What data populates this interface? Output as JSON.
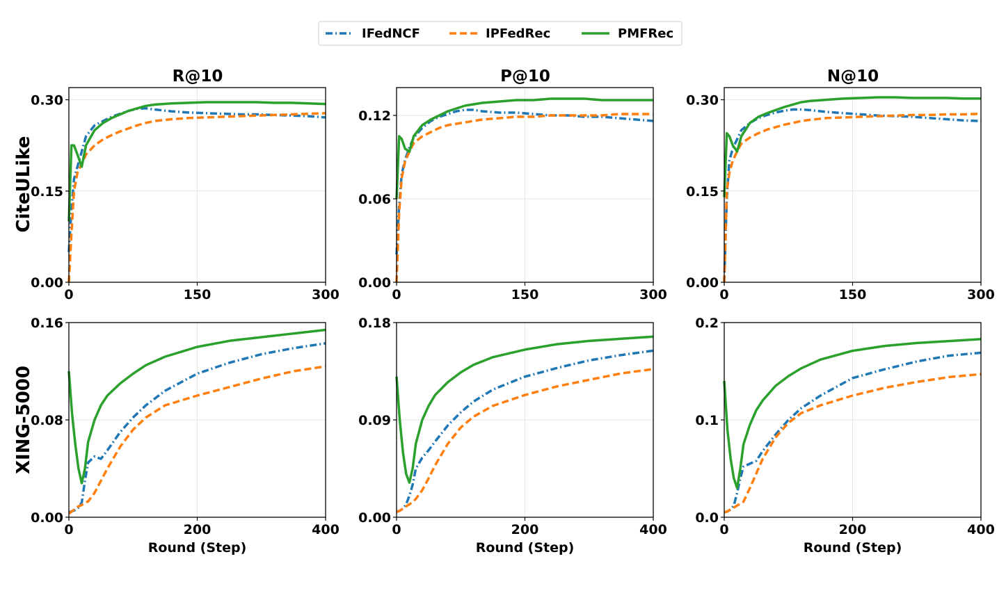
{
  "legend": {
    "placement": "top-center",
    "items": [
      {
        "key": "ifedncf",
        "label": "IFedNCF",
        "color": "#1f77b4",
        "style": "dashdot"
      },
      {
        "key": "ipfedrec",
        "label": "IPFedRec",
        "color": "#ff7f0e",
        "style": "dashed"
      },
      {
        "key": "pmfrec",
        "label": "PMFRec",
        "color": "#2ca02c",
        "style": "solid"
      }
    ]
  },
  "columns": [
    "R@10",
    "P@10",
    "N@10"
  ],
  "rows": [
    "CiteULike",
    "XING-5000"
  ],
  "x_axis_label": "Round (Step)",
  "chart_data": [
    {
      "type": "line",
      "row": "CiteULike",
      "title": "R@10",
      "xlabel": "",
      "grid": true,
      "xlim": [
        0,
        300
      ],
      "ylim": [
        0,
        0.32
      ],
      "xticks": [
        "0",
        "150",
        "300"
      ],
      "yticks": [
        "0.00",
        "0.15",
        "0.30"
      ],
      "x": [
        0,
        3,
        6,
        10,
        15,
        20,
        30,
        40,
        50,
        60,
        70,
        80,
        90,
        100,
        120,
        140,
        160,
        180,
        200,
        220,
        240,
        260,
        280,
        300
      ],
      "series": [
        {
          "key": "ifedncf",
          "values": [
            0.05,
            0.12,
            0.17,
            0.19,
            0.215,
            0.24,
            0.258,
            0.265,
            0.272,
            0.277,
            0.282,
            0.285,
            0.286,
            0.284,
            0.281,
            0.279,
            0.278,
            0.277,
            0.276,
            0.276,
            0.275,
            0.274,
            0.273,
            0.271
          ]
        },
        {
          "key": "ipfedrec",
          "values": [
            0.0,
            0.08,
            0.15,
            0.18,
            0.195,
            0.21,
            0.225,
            0.235,
            0.242,
            0.248,
            0.253,
            0.258,
            0.262,
            0.265,
            0.268,
            0.27,
            0.271,
            0.272,
            0.273,
            0.274,
            0.275,
            0.276,
            0.277,
            0.278
          ]
        },
        {
          "key": "pmfrec",
          "values": [
            0.1,
            0.225,
            0.225,
            0.21,
            0.19,
            0.225,
            0.25,
            0.262,
            0.27,
            0.276,
            0.282,
            0.286,
            0.29,
            0.292,
            0.294,
            0.295,
            0.296,
            0.296,
            0.296,
            0.296,
            0.295,
            0.295,
            0.294,
            0.293
          ]
        }
      ]
    },
    {
      "type": "line",
      "row": "CiteULike",
      "title": "P@10",
      "xlabel": "",
      "grid": true,
      "xlim": [
        0,
        300
      ],
      "ylim": [
        0,
        0.14
      ],
      "xticks": [
        "0",
        "150",
        "300"
      ],
      "yticks": [
        "0.00",
        "0.06",
        "0.12"
      ],
      "x": [
        0,
        3,
        6,
        10,
        15,
        20,
        30,
        40,
        50,
        60,
        70,
        80,
        90,
        100,
        120,
        140,
        160,
        180,
        200,
        220,
        240,
        260,
        280,
        300
      ],
      "series": [
        {
          "key": "ifedncf",
          "values": [
            0.02,
            0.055,
            0.078,
            0.088,
            0.097,
            0.104,
            0.111,
            0.116,
            0.119,
            0.121,
            0.123,
            0.124,
            0.124,
            0.123,
            0.122,
            0.122,
            0.121,
            0.12,
            0.12,
            0.119,
            0.119,
            0.118,
            0.117,
            0.116
          ]
        },
        {
          "key": "ipfedrec",
          "values": [
            0.0,
            0.05,
            0.075,
            0.087,
            0.094,
            0.1,
            0.105,
            0.108,
            0.111,
            0.113,
            0.114,
            0.115,
            0.116,
            0.117,
            0.118,
            0.119,
            0.119,
            0.12,
            0.12,
            0.12,
            0.12,
            0.121,
            0.121,
            0.121
          ]
        },
        {
          "key": "pmfrec",
          "values": [
            0.06,
            0.105,
            0.103,
            0.096,
            0.094,
            0.105,
            0.113,
            0.117,
            0.12,
            0.123,
            0.125,
            0.127,
            0.128,
            0.129,
            0.13,
            0.131,
            0.131,
            0.132,
            0.132,
            0.132,
            0.131,
            0.131,
            0.131,
            0.131
          ]
        }
      ]
    },
    {
      "type": "line",
      "row": "CiteULike",
      "title": "N@10",
      "xlabel": "",
      "grid": true,
      "xlim": [
        0,
        300
      ],
      "ylim": [
        0,
        0.32
      ],
      "xticks": [
        "0",
        "150",
        "300"
      ],
      "yticks": [
        "0.00",
        "0.15",
        "0.30"
      ],
      "x": [
        0,
        3,
        6,
        10,
        15,
        20,
        30,
        40,
        50,
        60,
        70,
        80,
        90,
        100,
        120,
        140,
        160,
        180,
        200,
        220,
        240,
        260,
        280,
        300
      ],
      "series": [
        {
          "key": "ifedncf",
          "values": [
            0.0,
            0.14,
            0.2,
            0.22,
            0.235,
            0.25,
            0.262,
            0.27,
            0.275,
            0.279,
            0.282,
            0.284,
            0.284,
            0.283,
            0.28,
            0.278,
            0.276,
            0.274,
            0.273,
            0.272,
            0.27,
            0.268,
            0.266,
            0.265
          ]
        },
        {
          "key": "ipfedrec",
          "values": [
            0.0,
            0.15,
            0.18,
            0.2,
            0.215,
            0.228,
            0.238,
            0.245,
            0.251,
            0.255,
            0.259,
            0.262,
            0.265,
            0.267,
            0.27,
            0.271,
            0.272,
            0.273,
            0.274,
            0.275,
            0.275,
            0.276,
            0.276,
            0.277
          ]
        },
        {
          "key": "pmfrec",
          "values": [
            0.14,
            0.245,
            0.24,
            0.225,
            0.215,
            0.24,
            0.262,
            0.272,
            0.278,
            0.283,
            0.288,
            0.292,
            0.296,
            0.298,
            0.3,
            0.302,
            0.303,
            0.304,
            0.304,
            0.303,
            0.303,
            0.303,
            0.302,
            0.302
          ]
        }
      ]
    },
    {
      "type": "line",
      "row": "XING-5000",
      "title": "",
      "xlabel": "Round (Step)",
      "grid": true,
      "xlim": [
        0,
        400
      ],
      "ylim": [
        0,
        0.16
      ],
      "xticks": [
        "0",
        "200",
        "400"
      ],
      "yticks": [
        "0.00",
        "0.08",
        "0.16"
      ],
      "x": [
        0,
        5,
        10,
        15,
        20,
        25,
        30,
        40,
        50,
        60,
        80,
        100,
        120,
        150,
        200,
        250,
        300,
        350,
        400
      ],
      "series": [
        {
          "key": "ifedncf",
          "values": [
            0.004,
            0.005,
            0.006,
            0.008,
            0.012,
            0.03,
            0.045,
            0.05,
            0.048,
            0.055,
            0.07,
            0.082,
            0.092,
            0.104,
            0.118,
            0.127,
            0.134,
            0.139,
            0.143
          ]
        },
        {
          "key": "ipfedrec",
          "values": [
            0.003,
            0.005,
            0.007,
            0.009,
            0.01,
            0.012,
            0.013,
            0.02,
            0.03,
            0.04,
            0.058,
            0.072,
            0.082,
            0.092,
            0.1,
            0.107,
            0.114,
            0.12,
            0.124
          ]
        },
        {
          "key": "pmfrec",
          "values": [
            0.12,
            0.085,
            0.06,
            0.04,
            0.028,
            0.04,
            0.062,
            0.08,
            0.092,
            0.1,
            0.11,
            0.118,
            0.125,
            0.132,
            0.14,
            0.145,
            0.148,
            0.151,
            0.154
          ]
        }
      ]
    },
    {
      "type": "line",
      "row": "XING-5000",
      "title": "",
      "xlabel": "Round (Step)",
      "grid": true,
      "xlim": [
        0,
        400
      ],
      "ylim": [
        0,
        0.18
      ],
      "xticks": [
        "0",
        "200",
        "400"
      ],
      "yticks": [
        "0.00",
        "0.09",
        "0.18"
      ],
      "x": [
        0,
        5,
        10,
        15,
        20,
        25,
        30,
        40,
        50,
        60,
        80,
        100,
        120,
        150,
        200,
        250,
        300,
        350,
        400
      ],
      "series": [
        {
          "key": "ifedncf",
          "values": [
            0.005,
            0.006,
            0.008,
            0.012,
            0.02,
            0.03,
            0.045,
            0.055,
            0.062,
            0.07,
            0.085,
            0.097,
            0.107,
            0.118,
            0.13,
            0.138,
            0.145,
            0.15,
            0.154
          ]
        },
        {
          "key": "ipfedrec",
          "values": [
            0.005,
            0.006,
            0.008,
            0.01,
            0.012,
            0.014,
            0.017,
            0.025,
            0.036,
            0.048,
            0.068,
            0.083,
            0.093,
            0.103,
            0.113,
            0.121,
            0.127,
            0.133,
            0.137
          ]
        },
        {
          "key": "pmfrec",
          "values": [
            0.13,
            0.09,
            0.06,
            0.04,
            0.032,
            0.045,
            0.068,
            0.09,
            0.103,
            0.113,
            0.125,
            0.134,
            0.141,
            0.148,
            0.155,
            0.16,
            0.163,
            0.165,
            0.167
          ]
        }
      ]
    },
    {
      "type": "line",
      "row": "XING-5000",
      "title": "",
      "xlabel": "Round (Step)",
      "grid": true,
      "xlim": [
        0,
        400
      ],
      "ylim": [
        0,
        0.2
      ],
      "xticks": [
        "0",
        "200",
        "400"
      ],
      "yticks": [
        "0.0",
        "0.1",
        "0.2"
      ],
      "x": [
        0,
        5,
        10,
        15,
        20,
        25,
        30,
        40,
        50,
        60,
        80,
        100,
        120,
        150,
        200,
        250,
        300,
        350,
        400
      ],
      "series": [
        {
          "key": "ifedncf",
          "values": [
            0.005,
            0.006,
            0.008,
            0.012,
            0.025,
            0.04,
            0.052,
            0.055,
            0.058,
            0.068,
            0.085,
            0.1,
            0.112,
            0.125,
            0.143,
            0.152,
            0.16,
            0.166,
            0.169
          ]
        },
        {
          "key": "ipfedrec",
          "values": [
            0.005,
            0.006,
            0.008,
            0.01,
            0.012,
            0.014,
            0.016,
            0.03,
            0.045,
            0.06,
            0.082,
            0.097,
            0.107,
            0.115,
            0.125,
            0.133,
            0.139,
            0.144,
            0.147
          ]
        },
        {
          "key": "pmfrec",
          "values": [
            0.14,
            0.09,
            0.06,
            0.04,
            0.03,
            0.05,
            0.075,
            0.095,
            0.11,
            0.12,
            0.135,
            0.145,
            0.153,
            0.162,
            0.171,
            0.176,
            0.179,
            0.181,
            0.183
          ]
        }
      ]
    }
  ]
}
